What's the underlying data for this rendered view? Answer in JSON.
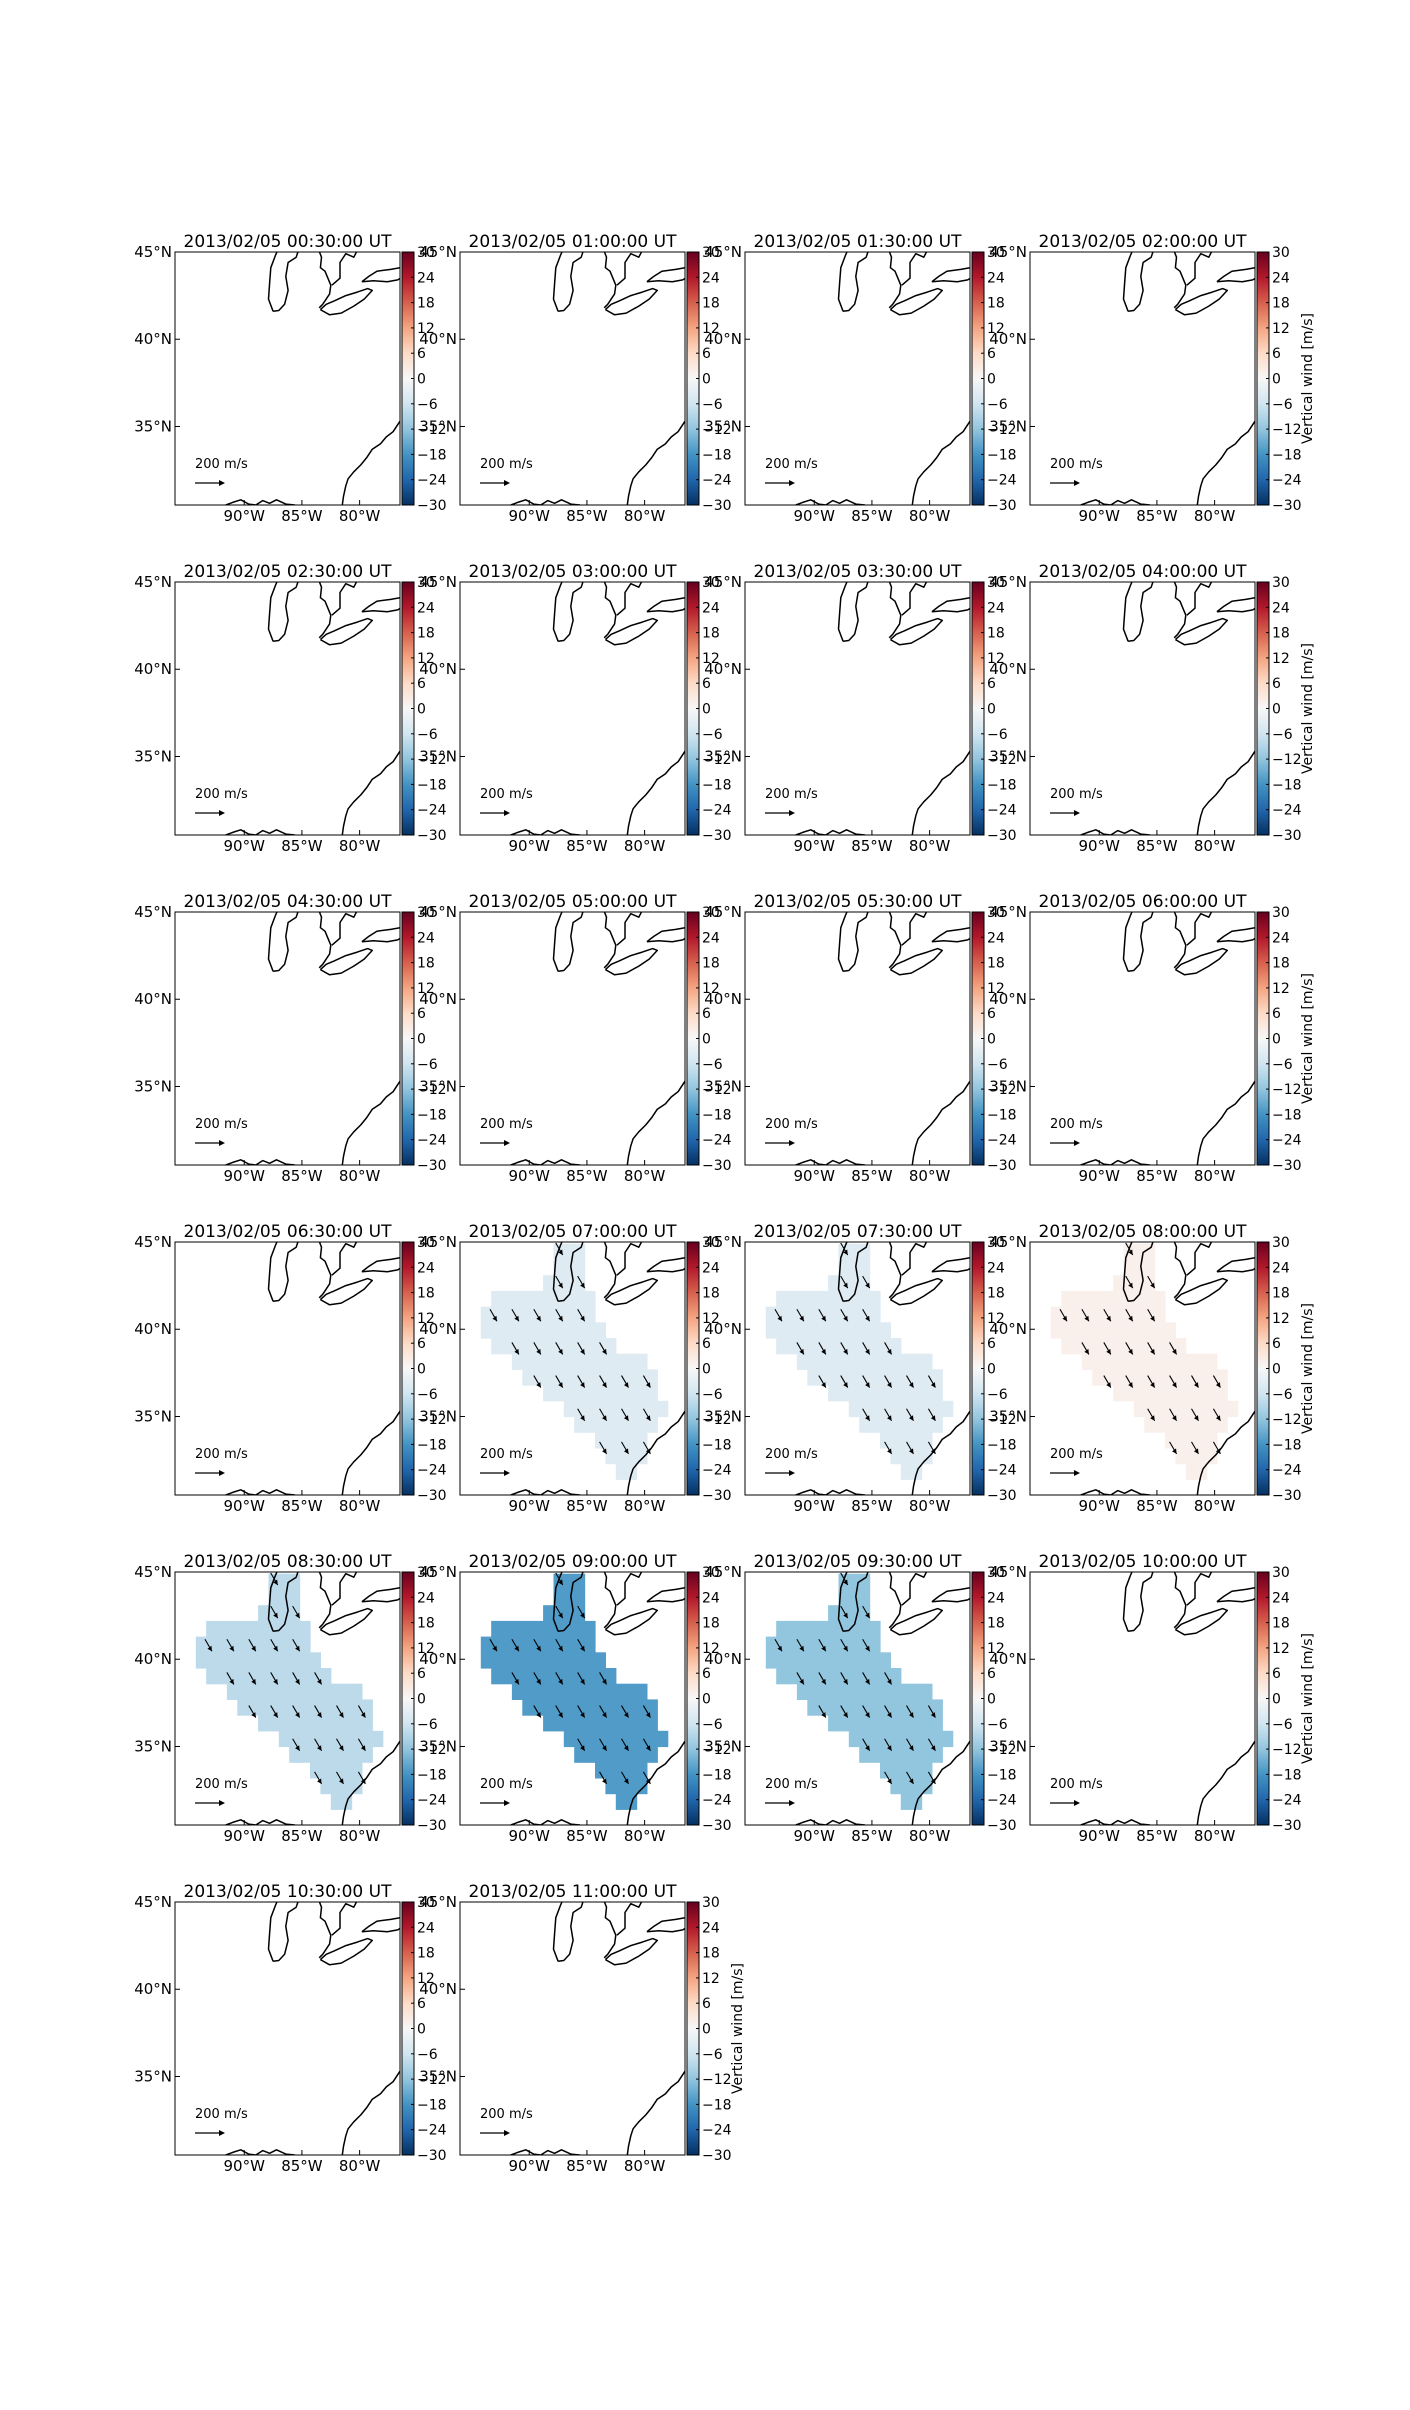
{
  "chart_data": {
    "type": "heatmap",
    "layout": {
      "rows": 6,
      "cols": 4
    },
    "map": {
      "lon_range": [
        -96,
        -76.5
      ],
      "lat_range": [
        30.5,
        45
      ],
      "lon_ticks": [
        -90,
        -85,
        -80
      ],
      "lat_ticks": [
        35,
        40,
        45
      ],
      "lon_tick_labels": [
        "90°W",
        "85°W",
        "80°W"
      ],
      "lat_tick_labels": [
        "35°N",
        "40°N",
        "45°N"
      ]
    },
    "colorbar": {
      "label": "Vertical wind [m/s]",
      "range": [
        -30,
        30
      ],
      "ticks": [
        30,
        24,
        18,
        12,
        6,
        0,
        -6,
        -12,
        -18,
        -24,
        -30
      ],
      "tick_labels": [
        "30",
        "24",
        "18",
        "12",
        "6",
        "0",
        "−6",
        "−12",
        "−18",
        "−24",
        "−30"
      ],
      "colormap": [
        "#053061",
        "#2166ac",
        "#4393c3",
        "#92c5de",
        "#d1e5f0",
        "#f7f7f7",
        "#fddbc7",
        "#f4a582",
        "#d6604d",
        "#b2182b",
        "#67001f"
      ]
    },
    "reference_arrow": {
      "value": "200",
      "unit": "m/s"
    },
    "panels": [
      {
        "title": "2013/02/05 00:30:00 UT",
        "value": null
      },
      {
        "title": "2013/02/05 01:00:00 UT",
        "value": null
      },
      {
        "title": "2013/02/05 01:30:00 UT",
        "value": null
      },
      {
        "title": "2013/02/05 02:00:00 UT",
        "value": null
      },
      {
        "title": "2013/02/05 02:30:00 UT",
        "value": null
      },
      {
        "title": "2013/02/05 03:00:00 UT",
        "value": null
      },
      {
        "title": "2013/02/05 03:30:00 UT",
        "value": null
      },
      {
        "title": "2013/02/05 04:00:00 UT",
        "value": null
      },
      {
        "title": "2013/02/05 04:30:00 UT",
        "value": null
      },
      {
        "title": "2013/02/05 05:00:00 UT",
        "value": null
      },
      {
        "title": "2013/02/05 05:30:00 UT",
        "value": null
      },
      {
        "title": "2013/02/05 06:00:00 UT",
        "value": null
      },
      {
        "title": "2013/02/05 06:30:00 UT",
        "value": null
      },
      {
        "title": "2013/02/05 07:00:00 UT",
        "value": -4
      },
      {
        "title": "2013/02/05 07:30:00 UT",
        "value": -4
      },
      {
        "title": "2013/02/05 08:00:00 UT",
        "value": 1.5
      },
      {
        "title": "2013/02/05 08:30:00 UT",
        "value": -8
      },
      {
        "title": "2013/02/05 09:00:00 UT",
        "value": -17
      },
      {
        "title": "2013/02/05 09:30:00 UT",
        "value": -12
      },
      {
        "title": "2013/02/05 10:00:00 UT",
        "value": null
      },
      {
        "title": "2013/02/05 10:30:00 UT",
        "value": null
      },
      {
        "title": "2013/02/05 11:00:00 UT",
        "value": null
      }
    ]
  }
}
